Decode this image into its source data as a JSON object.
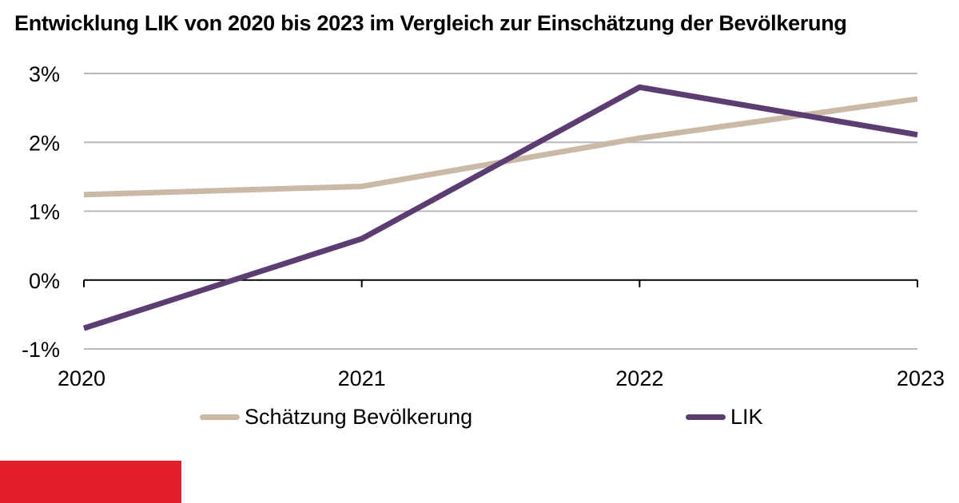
{
  "chart_data": {
    "type": "line",
    "title": "Entwicklung LIK von 2020 bis 2023 im Vergleich zur Einschätzung der Bevölkerung",
    "xlabel": "",
    "ylabel": "",
    "x": [
      "2020",
      "2021",
      "2022",
      "2023"
    ],
    "ylim": [
      -1,
      3
    ],
    "yticks": [
      3,
      2,
      1,
      0,
      -1
    ],
    "ytick_labels": [
      "3%",
      "2%",
      "1%",
      "0%",
      "-1%"
    ],
    "grid": true,
    "legend_position": "bottom",
    "series": [
      {
        "name": "Schätzung Bevölkerung",
        "color": "#cbb9a8",
        "values": [
          1.24,
          1.36,
          2.06,
          2.63
        ]
      },
      {
        "name": "LIK",
        "color": "#5c3d72",
        "values": [
          -0.7,
          0.6,
          2.8,
          2.11
        ]
      }
    ]
  },
  "brand": {
    "accent_color": "#e3202a"
  }
}
